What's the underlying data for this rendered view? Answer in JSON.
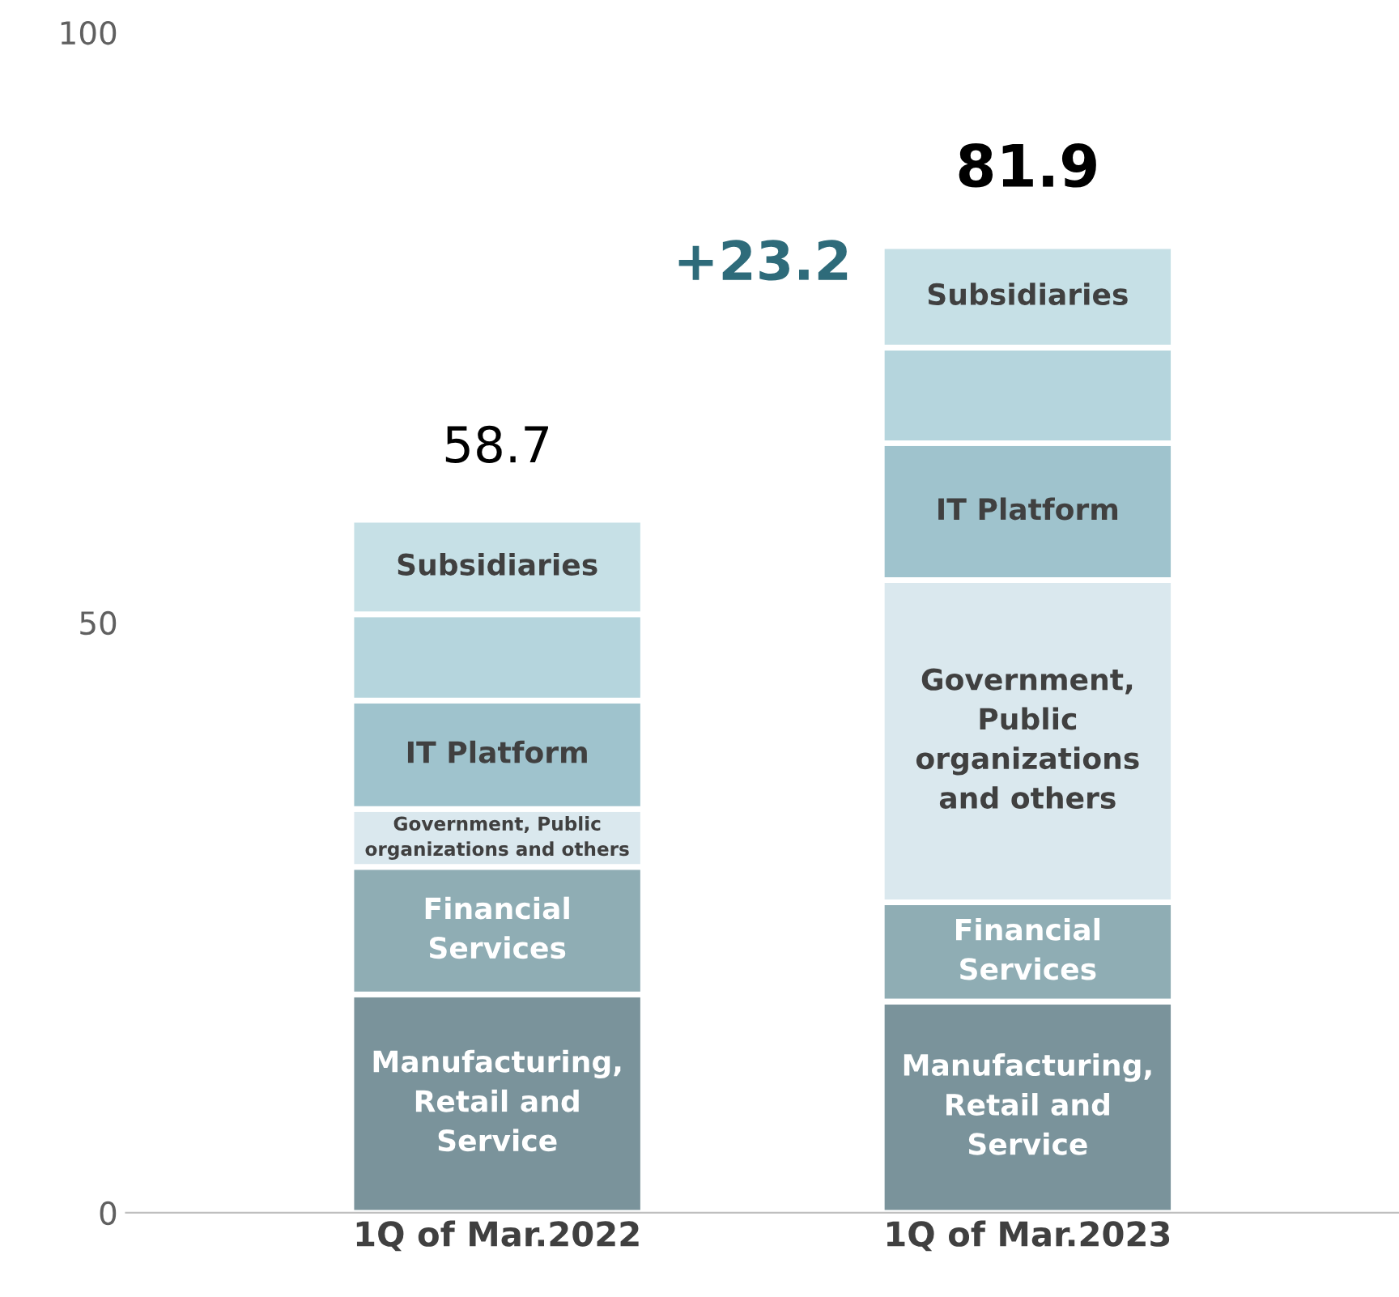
{
  "chart_data": {
    "type": "bar",
    "stacked": true,
    "categories": [
      "1Q of Mar.2022",
      "1Q of Mar.2023"
    ],
    "series": [
      {
        "name": "Manufacturing, Retail and Service",
        "color": "#7a939b",
        "values": [
          18.5,
          17.9
        ]
      },
      {
        "name": "Financial Services",
        "color": "#8fadb4",
        "values": [
          10.8,
          8.4
        ]
      },
      {
        "name": "Government, Public organizations and others",
        "color": "#dae8ee",
        "values": [
          4.9,
          27.3
        ]
      },
      {
        "name": "IT Platform",
        "color": "#9fc3cd",
        "values": [
          9.2,
          11.6
        ]
      },
      {
        "color": "#b5d5dd",
        "values": [
          7.3,
          8.1
        ]
      },
      {
        "name": "Subsidiaries",
        "color": "#c6e0e6",
        "values": [
          8.0,
          8.6
        ]
      }
    ],
    "totals": [
      "58.7",
      "81.9"
    ],
    "annotations": [
      "+23.2"
    ],
    "ylim": [
      0,
      100
    ],
    "yticks": [
      0,
      50,
      100
    ],
    "grid": false,
    "legend": false
  }
}
